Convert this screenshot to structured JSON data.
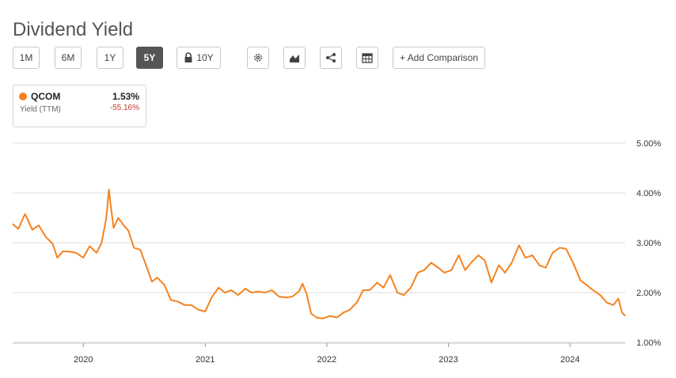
{
  "title": "Dividend Yield",
  "toolbar": {
    "ranges": [
      "1M",
      "6M",
      "1Y",
      "5Y",
      "10Y"
    ],
    "active_range": "5Y",
    "add_comparison": "+ Add Comparison",
    "icons": [
      "gear-icon",
      "chart-type-icon",
      "share-icon",
      "table-icon"
    ]
  },
  "legend": {
    "ticker": "QCOM",
    "metric": "Yield (TTM)",
    "value": "1.53%",
    "change": "-55.16%"
  },
  "colors": {
    "series": "#f5821f",
    "active_button": "#555555",
    "change_negative": "#c0392b",
    "grid": "#dddddd"
  },
  "chart_data": {
    "type": "line",
    "title": "",
    "xlabel": "",
    "ylabel": "",
    "ylim": [
      1.0,
      5.0
    ],
    "yticks": [
      "1.00%",
      "2.00%",
      "3.00%",
      "4.00%",
      "5.00%"
    ],
    "y_axis_side": "right",
    "xticks": [
      "2020",
      "2021",
      "2022",
      "2023",
      "2024"
    ],
    "xlim": [
      "2019-06-03",
      "2024-06-15"
    ],
    "grid": true,
    "series": [
      {
        "name": "QCOM",
        "x": [
          "2019-06-03",
          "2019-06-20",
          "2019-07-10",
          "2019-08-01",
          "2019-08-20",
          "2019-09-10",
          "2019-10-01",
          "2019-10-15",
          "2019-11-01",
          "2019-11-20",
          "2019-12-10",
          "2020-01-01",
          "2020-01-20",
          "2020-02-10",
          "2020-02-25",
          "2020-03-10",
          "2020-03-18",
          "2020-03-24",
          "2020-04-01",
          "2020-04-15",
          "2020-05-01",
          "2020-05-15",
          "2020-06-01",
          "2020-06-20",
          "2020-07-10",
          "2020-07-25",
          "2020-08-10",
          "2020-09-01",
          "2020-09-20",
          "2020-10-10",
          "2020-11-01",
          "2020-11-20",
          "2020-12-10",
          "2021-01-01",
          "2021-01-20",
          "2021-02-10",
          "2021-03-01",
          "2021-03-20",
          "2021-04-10",
          "2021-05-01",
          "2021-05-20",
          "2021-06-10",
          "2021-07-01",
          "2021-07-20",
          "2021-08-10",
          "2021-09-01",
          "2021-09-20",
          "2021-10-10",
          "2021-10-20",
          "2021-11-01",
          "2021-11-15",
          "2021-12-01",
          "2021-12-20",
          "2022-01-10",
          "2022-02-01",
          "2022-02-20",
          "2022-03-10",
          "2022-04-01",
          "2022-04-20",
          "2022-05-10",
          "2022-06-01",
          "2022-06-20",
          "2022-07-10",
          "2022-08-01",
          "2022-08-20",
          "2022-09-10",
          "2022-10-01",
          "2022-10-20",
          "2022-11-10",
          "2022-12-01",
          "2022-12-20",
          "2023-01-10",
          "2023-02-01",
          "2023-02-20",
          "2023-03-10",
          "2023-04-01",
          "2023-04-20",
          "2023-05-10",
          "2023-06-01",
          "2023-06-20",
          "2023-07-10",
          "2023-08-01",
          "2023-08-20",
          "2023-09-10",
          "2023-10-01",
          "2023-10-20",
          "2023-11-10",
          "2023-12-01",
          "2023-12-20",
          "2024-01-10",
          "2024-02-01",
          "2024-02-20",
          "2024-03-10",
          "2024-04-01",
          "2024-04-20",
          "2024-05-10",
          "2024-05-25",
          "2024-06-05",
          "2024-06-15"
        ],
        "values": [
          3.38,
          3.28,
          3.58,
          3.26,
          3.35,
          3.12,
          2.98,
          2.7,
          2.83,
          2.82,
          2.8,
          2.7,
          2.93,
          2.8,
          3.0,
          3.5,
          4.07,
          3.7,
          3.3,
          3.5,
          3.35,
          3.25,
          2.9,
          2.86,
          2.5,
          2.22,
          2.3,
          2.15,
          1.85,
          1.82,
          1.75,
          1.75,
          1.66,
          1.62,
          1.9,
          2.1,
          2.0,
          2.05,
          1.95,
          2.08,
          2.0,
          2.02,
          2.0,
          2.05,
          1.92,
          1.9,
          1.92,
          2.03,
          2.18,
          1.98,
          1.58,
          1.5,
          1.48,
          1.53,
          1.5,
          1.6,
          1.65,
          1.8,
          2.05,
          2.05,
          2.2,
          2.1,
          2.35,
          2.0,
          1.95,
          2.1,
          2.4,
          2.45,
          2.6,
          2.5,
          2.4,
          2.45,
          2.75,
          2.45,
          2.6,
          2.75,
          2.65,
          2.2,
          2.55,
          2.4,
          2.6,
          2.95,
          2.7,
          2.75,
          2.55,
          2.5,
          2.8,
          2.9,
          2.88,
          2.6,
          2.25,
          2.15,
          2.05,
          1.95,
          1.8,
          1.75,
          1.88,
          1.6,
          1.53
        ]
      }
    ]
  }
}
